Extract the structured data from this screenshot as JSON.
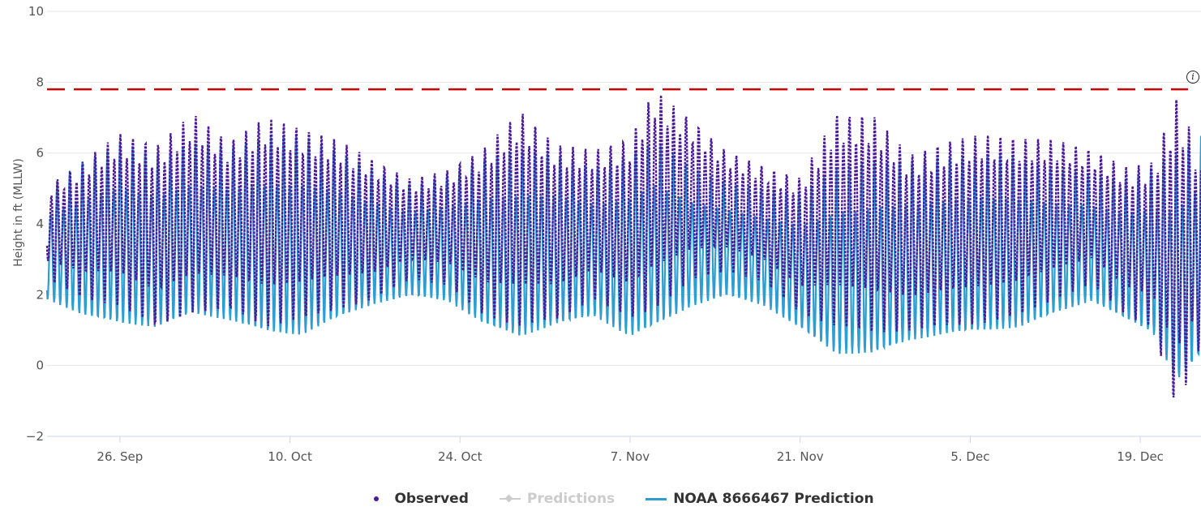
{
  "chart_data": {
    "type": "line",
    "xlabel": "",
    "ylabel": "Height in ft (MLLW)",
    "ylim": [
      -2,
      10
    ],
    "y_ticks": [
      "−2",
      "0",
      "2",
      "4",
      "6",
      "8",
      "10"
    ],
    "x_range": [
      "2024-09-20",
      "2024-12-24"
    ],
    "x_ticks": [
      {
        "date": "2024-09-26",
        "label": "26. Sep"
      },
      {
        "date": "2024-10-10",
        "label": "10. Oct"
      },
      {
        "date": "2024-10-24",
        "label": "24. Oct"
      },
      {
        "date": "2024-11-07",
        "label": "7. Nov"
      },
      {
        "date": "2024-11-21",
        "label": "21. Nov"
      },
      {
        "date": "2024-12-05",
        "label": "5. Dec"
      },
      {
        "date": "2024-12-19",
        "label": "19. Dec"
      }
    ],
    "threshold": {
      "value": 7.8,
      "color": "#cc0000",
      "style": "dashed"
    },
    "series": [
      {
        "name": "Observed",
        "color": "#4b1a9b",
        "marker": "dot",
        "envelope": {
          "x": [
            "2024-09-20",
            "2024-09-23",
            "2024-09-26",
            "2024-09-29",
            "2024-10-02",
            "2024-10-05",
            "2024-10-08",
            "2024-10-11",
            "2024-10-14",
            "2024-10-17",
            "2024-10-20",
            "2024-10-23",
            "2024-10-26",
            "2024-10-29",
            "2024-11-01",
            "2024-11-04",
            "2024-11-07",
            "2024-11-09",
            "2024-11-12",
            "2024-11-15",
            "2024-11-18",
            "2024-11-21",
            "2024-11-24",
            "2024-11-27",
            "2024-11-30",
            "2024-12-03",
            "2024-12-06",
            "2024-12-09",
            "2024-12-12",
            "2024-12-15",
            "2024-12-18",
            "2024-12-20",
            "2024-12-22",
            "2024-12-24"
          ],
          "high": [
            5.2,
            6.0,
            6.8,
            6.5,
            7.4,
            6.6,
            7.3,
            7.0,
            6.6,
            6.0,
            5.4,
            5.7,
            6.4,
            7.5,
            6.5,
            6.3,
            6.7,
            8.1,
            7.2,
            6.2,
            5.8,
            5.5,
            7.4,
            7.4,
            6.2,
            6.6,
            6.8,
            6.7,
            6.6,
            6.3,
            5.8,
            6.0,
            8.1,
            6.2
          ],
          "low": [
            2.4,
            1.8,
            1.6,
            1.0,
            1.4,
            1.5,
            1.0,
            1.2,
            1.5,
            1.8,
            2.4,
            2.2,
            1.3,
            1.0,
            1.2,
            1.8,
            1.2,
            1.5,
            2.3,
            2.6,
            2.3,
            1.4,
            1.0,
            0.8,
            0.9,
            1.0,
            1.1,
            1.3,
            1.8,
            2.2,
            1.3,
            1.0,
            -1.5,
            0.5
          ]
        }
      },
      {
        "name": "Predictions",
        "color": "#cccccc",
        "marker": "diamond",
        "visible": false
      },
      {
        "name": "NOAA 8666467 Prediction",
        "color": "#2c9ed2",
        "marker": "line",
        "envelope": {
          "x": [
            "2024-09-20",
            "2024-09-23",
            "2024-09-26",
            "2024-09-29",
            "2024-10-02",
            "2024-10-05",
            "2024-10-08",
            "2024-10-11",
            "2024-10-14",
            "2024-10-17",
            "2024-10-20",
            "2024-10-23",
            "2024-10-26",
            "2024-10-29",
            "2024-11-01",
            "2024-11-04",
            "2024-11-07",
            "2024-11-09",
            "2024-11-12",
            "2024-11-15",
            "2024-11-18",
            "2024-11-21",
            "2024-11-24",
            "2024-11-27",
            "2024-11-30",
            "2024-12-03",
            "2024-12-06",
            "2024-12-09",
            "2024-12-12",
            "2024-12-15",
            "2024-12-18",
            "2024-12-20",
            "2024-12-22",
            "2024-12-24"
          ],
          "high": [
            5.0,
            5.8,
            6.3,
            6.0,
            6.3,
            6.2,
            6.5,
            6.5,
            6.1,
            5.5,
            5.1,
            5.4,
            5.9,
            6.1,
            6.0,
            5.6,
            6.0,
            6.4,
            5.6,
            5.2,
            5.0,
            4.9,
            5.6,
            5.8,
            5.8,
            5.9,
            6.0,
            5.9,
            5.6,
            5.4,
            5.3,
            5.6,
            6.0,
            6.6
          ],
          "low": [
            1.5,
            0.9,
            0.6,
            0.5,
            0.9,
            0.7,
            0.3,
            0.2,
            0.8,
            1.3,
            1.6,
            1.4,
            0.6,
            0.2,
            0.6,
            0.9,
            0.2,
            0.5,
            1.2,
            1.6,
            1.3,
            0.6,
            -0.3,
            -0.3,
            0.1,
            0.3,
            0.4,
            0.5,
            1.0,
            1.4,
            0.8,
            0.4,
            -1.2,
            -0.4
          ]
        }
      }
    ]
  },
  "info_icon": "info-circle-icon"
}
